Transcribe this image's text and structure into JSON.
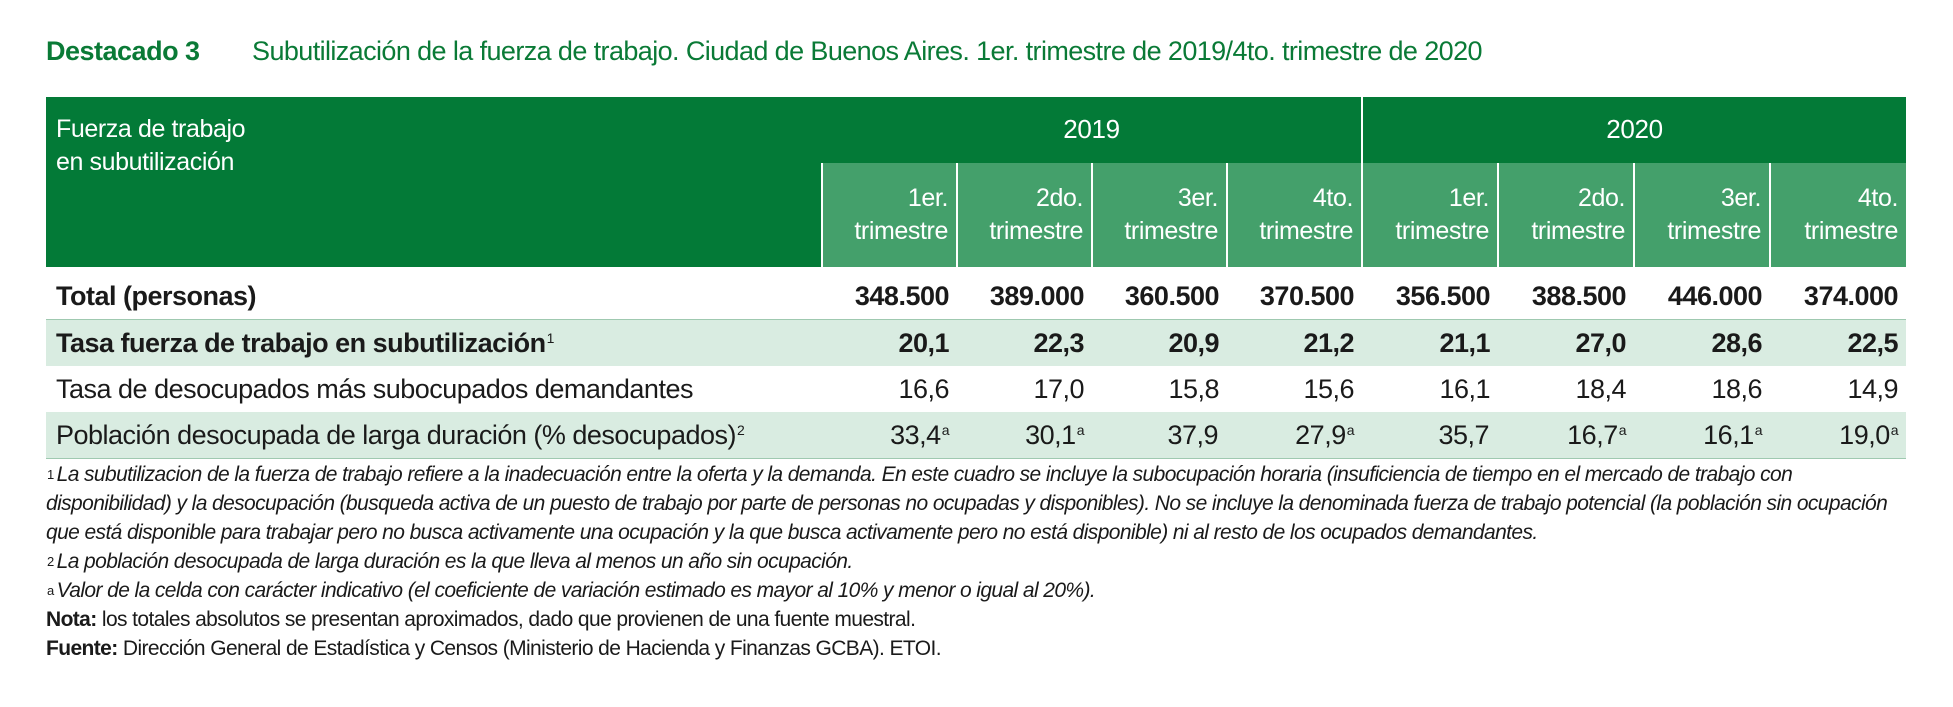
{
  "title": {
    "label": "Destacado 3",
    "text": "Subutilización de la fuerza de trabajo. Ciudad de Buenos Aires. 1er. trimestre de 2019/4to. trimestre de 2020"
  },
  "table": {
    "stub_head_line1": "Fuerza de trabajo",
    "stub_head_line2": "en subutilización",
    "years": [
      "2019",
      "2020"
    ],
    "quarters": [
      {
        "l1": "1er.",
        "l2": "trimestre"
      },
      {
        "l1": "2do.",
        "l2": "trimestre"
      },
      {
        "l1": "3er.",
        "l2": "trimestre"
      },
      {
        "l1": "4to.",
        "l2": "trimestre"
      },
      {
        "l1": "1er.",
        "l2": "trimestre"
      },
      {
        "l1": "2do.",
        "l2": "trimestre"
      },
      {
        "l1": "3er.",
        "l2": "trimestre"
      },
      {
        "l1": "4to.",
        "l2": "trimestre"
      }
    ],
    "rows": [
      {
        "label": "Total (personas)",
        "sup": "",
        "values": [
          "348.500",
          "389.000",
          "360.500",
          "370.500",
          "356.500",
          "388.500",
          "446.000",
          "374.000"
        ],
        "marks": [
          "",
          "",
          "",
          "",
          "",
          "",
          "",
          ""
        ]
      },
      {
        "label": "Tasa fuerza de trabajo en subutilización",
        "sup": "1",
        "values": [
          "20,1",
          "22,3",
          "20,9",
          "21,2",
          "21,1",
          "27,0",
          "28,6",
          "22,5"
        ],
        "marks": [
          "",
          "",
          "",
          "",
          "",
          "",
          "",
          ""
        ]
      },
      {
        "label": "Tasa de desocupados más subocupados demandantes",
        "sup": "",
        "values": [
          "16,6",
          "17,0",
          "15,8",
          "15,6",
          "16,1",
          "18,4",
          "18,6",
          "14,9"
        ],
        "marks": [
          "",
          "",
          "",
          "",
          "",
          "",
          "",
          ""
        ]
      },
      {
        "label": "Población desocupada de larga duración (% desocupados)",
        "sup": "2",
        "values": [
          "33,4",
          "30,1",
          "37,9",
          "27,9",
          "35,7",
          "16,7",
          "16,1",
          "19,0"
        ],
        "marks": [
          "a",
          "a",
          "",
          "a",
          "",
          "a",
          "a",
          "a"
        ]
      }
    ]
  },
  "notes": {
    "n1_mark": "1",
    "n1_text": "La subutilizacion de la fuerza de trabajo refiere a la inadecuación entre la oferta y la demanda. En este cuadro se incluye la subocupación horaria (insuficiencia de tiempo en el mercado de trabajo con disponibilidad) y la desocupación (busqueda activa de un puesto de trabajo por parte de personas no ocupadas y disponibles). No se incluye la denominada fuerza de trabajo potencial (la población sin ocupación que está disponible para trabajar pero no busca activamente una ocupación y la que busca activamente pero no está disponible) ni al resto de los ocupados demandantes.",
    "n2_mark": "2",
    "n2_text": "La población desocupada de larga duración es la que lleva al menos un año sin ocupación.",
    "na_mark": "a",
    "na_text": "Valor de la celda con carácter indicativo (el coeficiente de variación estimado es mayor al 10% y menor o igual al 20%).",
    "nota_label": "Nota:",
    "nota_text": " los totales absolutos se presentan aproximados, dado que provienen de una fuente muestral.",
    "fuente_label": "Fuente:",
    "fuente_text": " Dirección General de Estadística y Censos (Ministerio de Hacienda y Finanzas GCBA). ETOI."
  }
}
